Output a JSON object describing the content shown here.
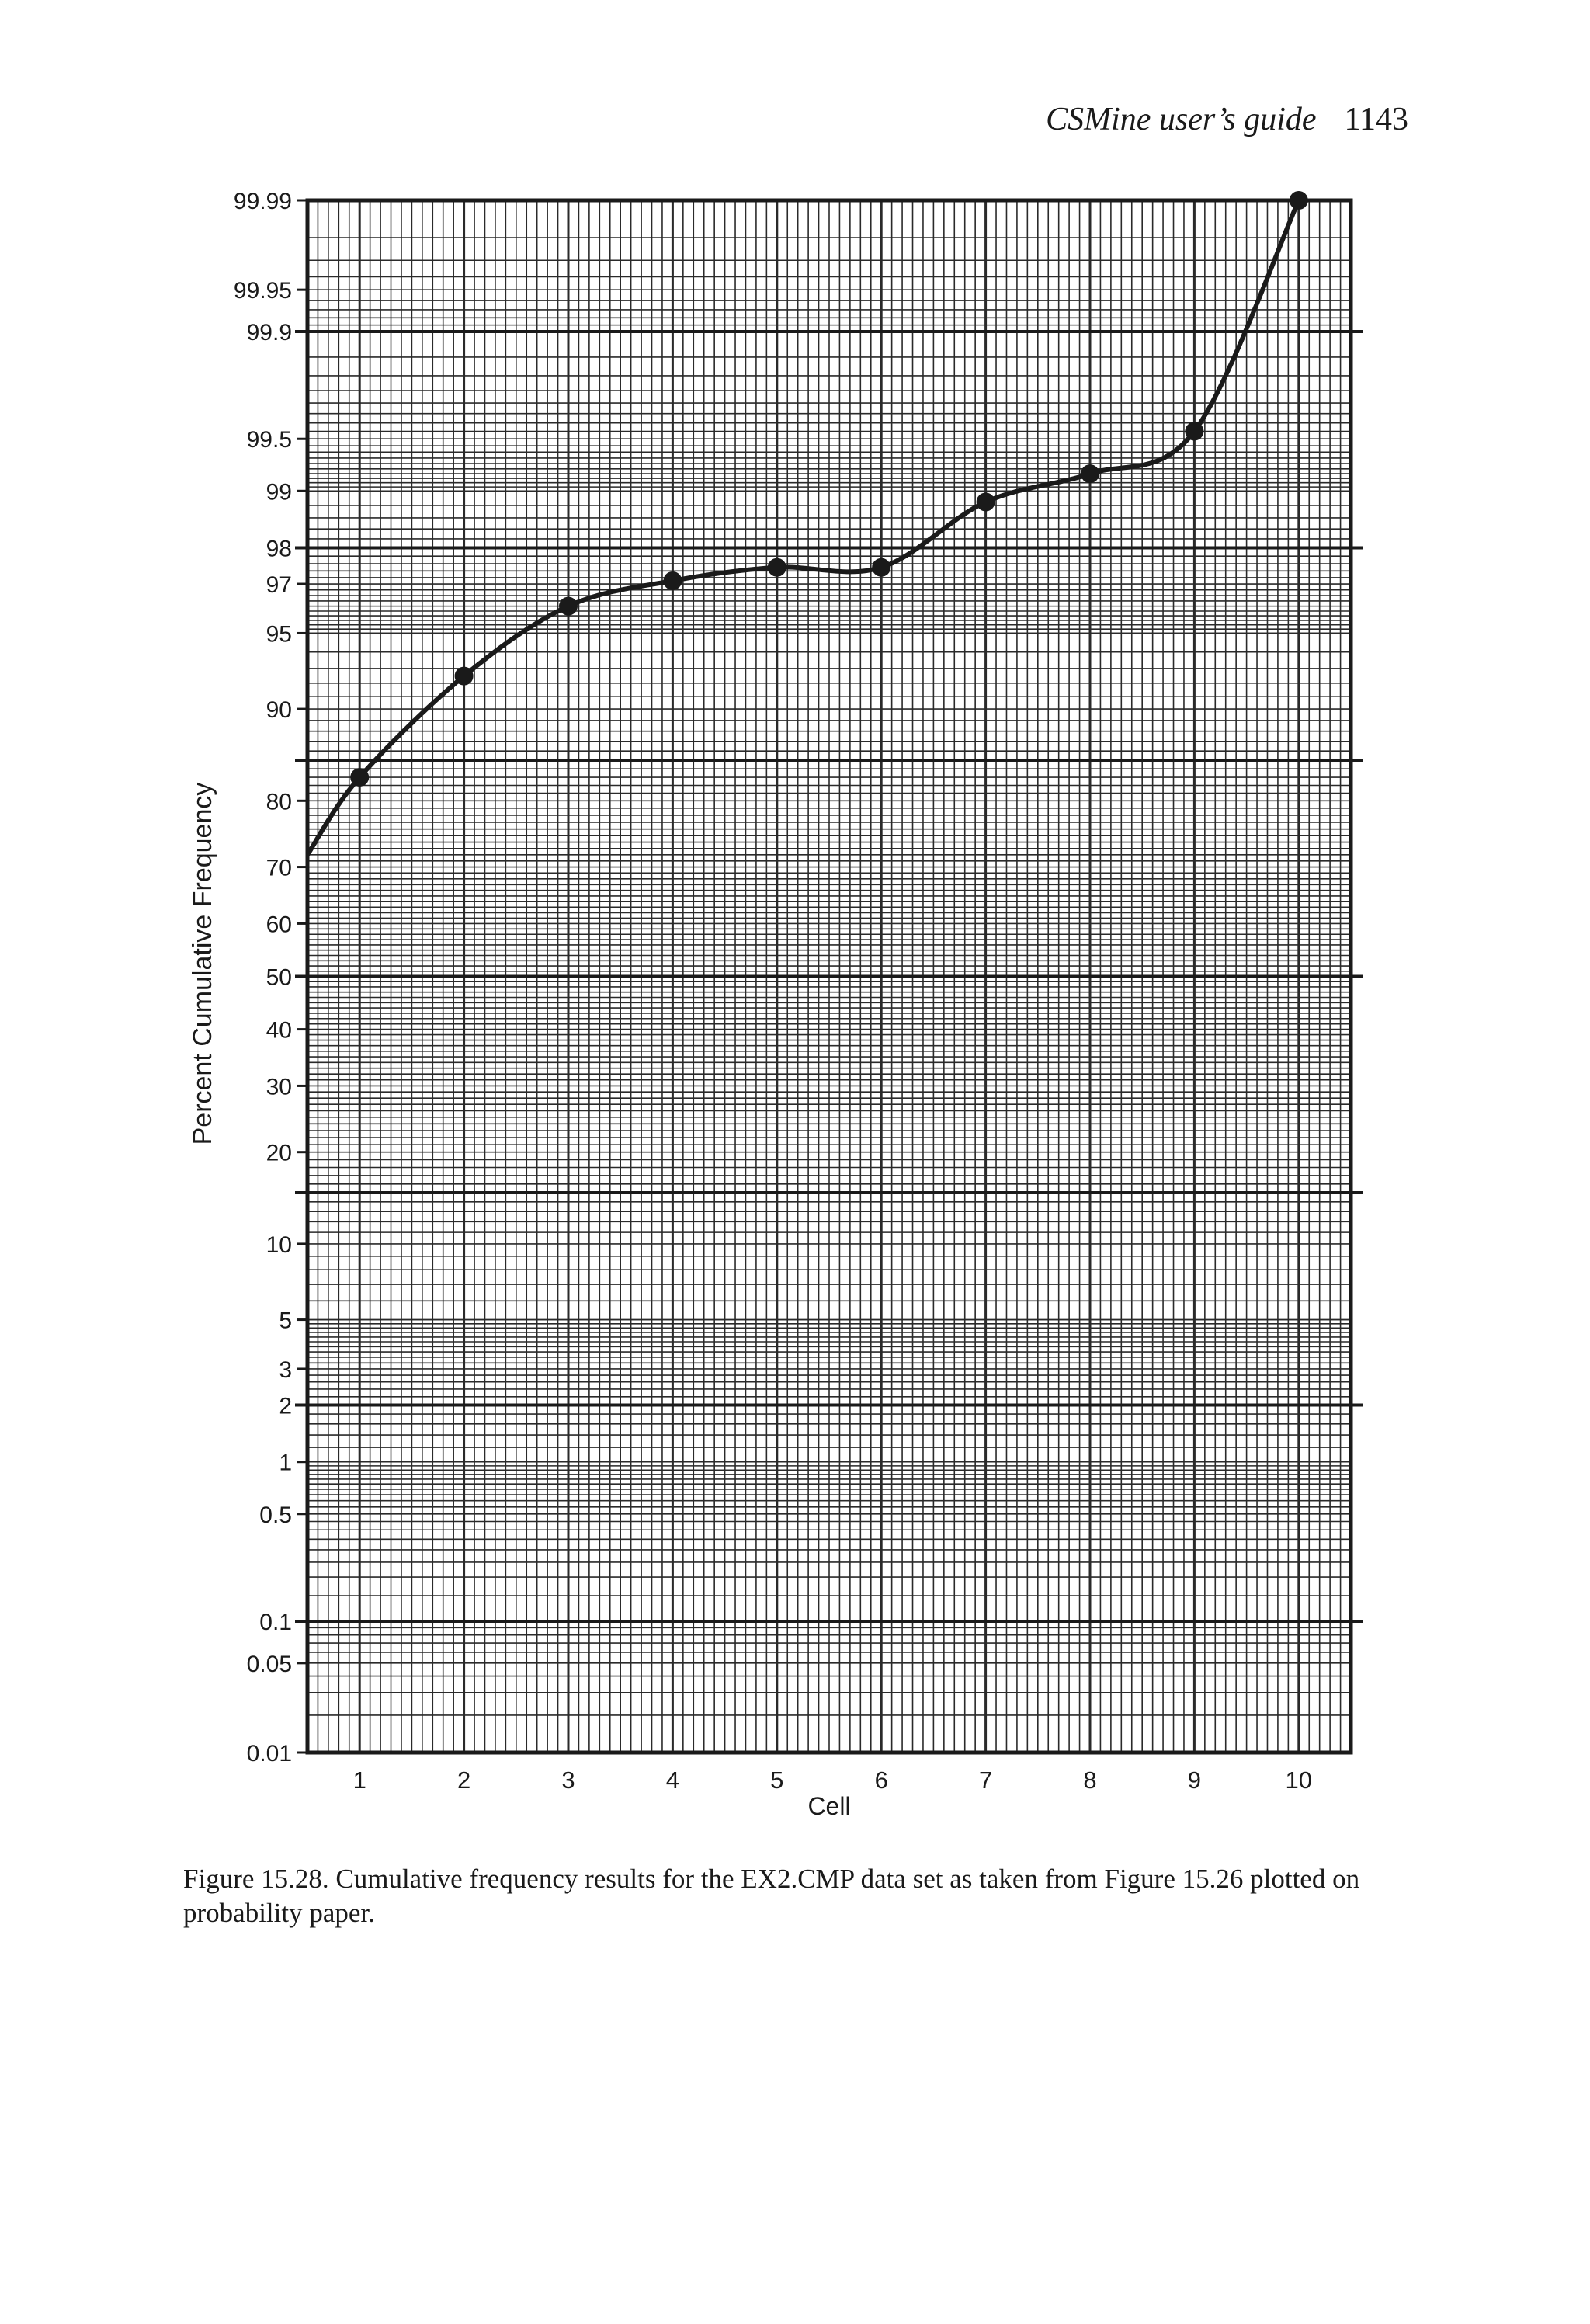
{
  "header": {
    "running_title": "CSMine user’s guide",
    "page_number": "1143"
  },
  "caption": "Figure 15.28.  Cumulative frequency results for the EX2.CMP data set as taken from Figure 15.26 plotted on probability paper.",
  "colors": {
    "ink": "#1a1a1a",
    "grid": "#2a2a2a",
    "background": "#ffffff"
  },
  "chart_data": {
    "type": "scatter",
    "paper": "probability",
    "title": "",
    "xlabel": "Cell",
    "ylabel": "Percent Cumulative Frequency",
    "xlim": [
      0.5,
      10.5
    ],
    "ylim": [
      0.01,
      99.99
    ],
    "x_ticks": [
      "1",
      "2",
      "3",
      "4",
      "5",
      "6",
      "7",
      "8",
      "9",
      "10"
    ],
    "y_ticks": [
      "0.01",
      "0.05",
      "0.1",
      "0.5",
      "1",
      "2",
      "3",
      "5",
      "10",
      "20",
      "30",
      "40",
      "50",
      "60",
      "70",
      "80",
      "90",
      "95",
      "97",
      "98",
      "99",
      "99.5",
      "99.9",
      "99.95",
      "99.99"
    ],
    "grid": true,
    "legend": "none",
    "series": [
      {
        "x": [
          1,
          2,
          3,
          4,
          5,
          6,
          7,
          8,
          9,
          10
        ],
        "y": [
          83,
          92.5,
          96.2,
          97.1,
          97.5,
          97.5,
          98.85,
          99.2,
          99.55,
          99.99
        ],
        "fit_curve": true
      }
    ]
  }
}
